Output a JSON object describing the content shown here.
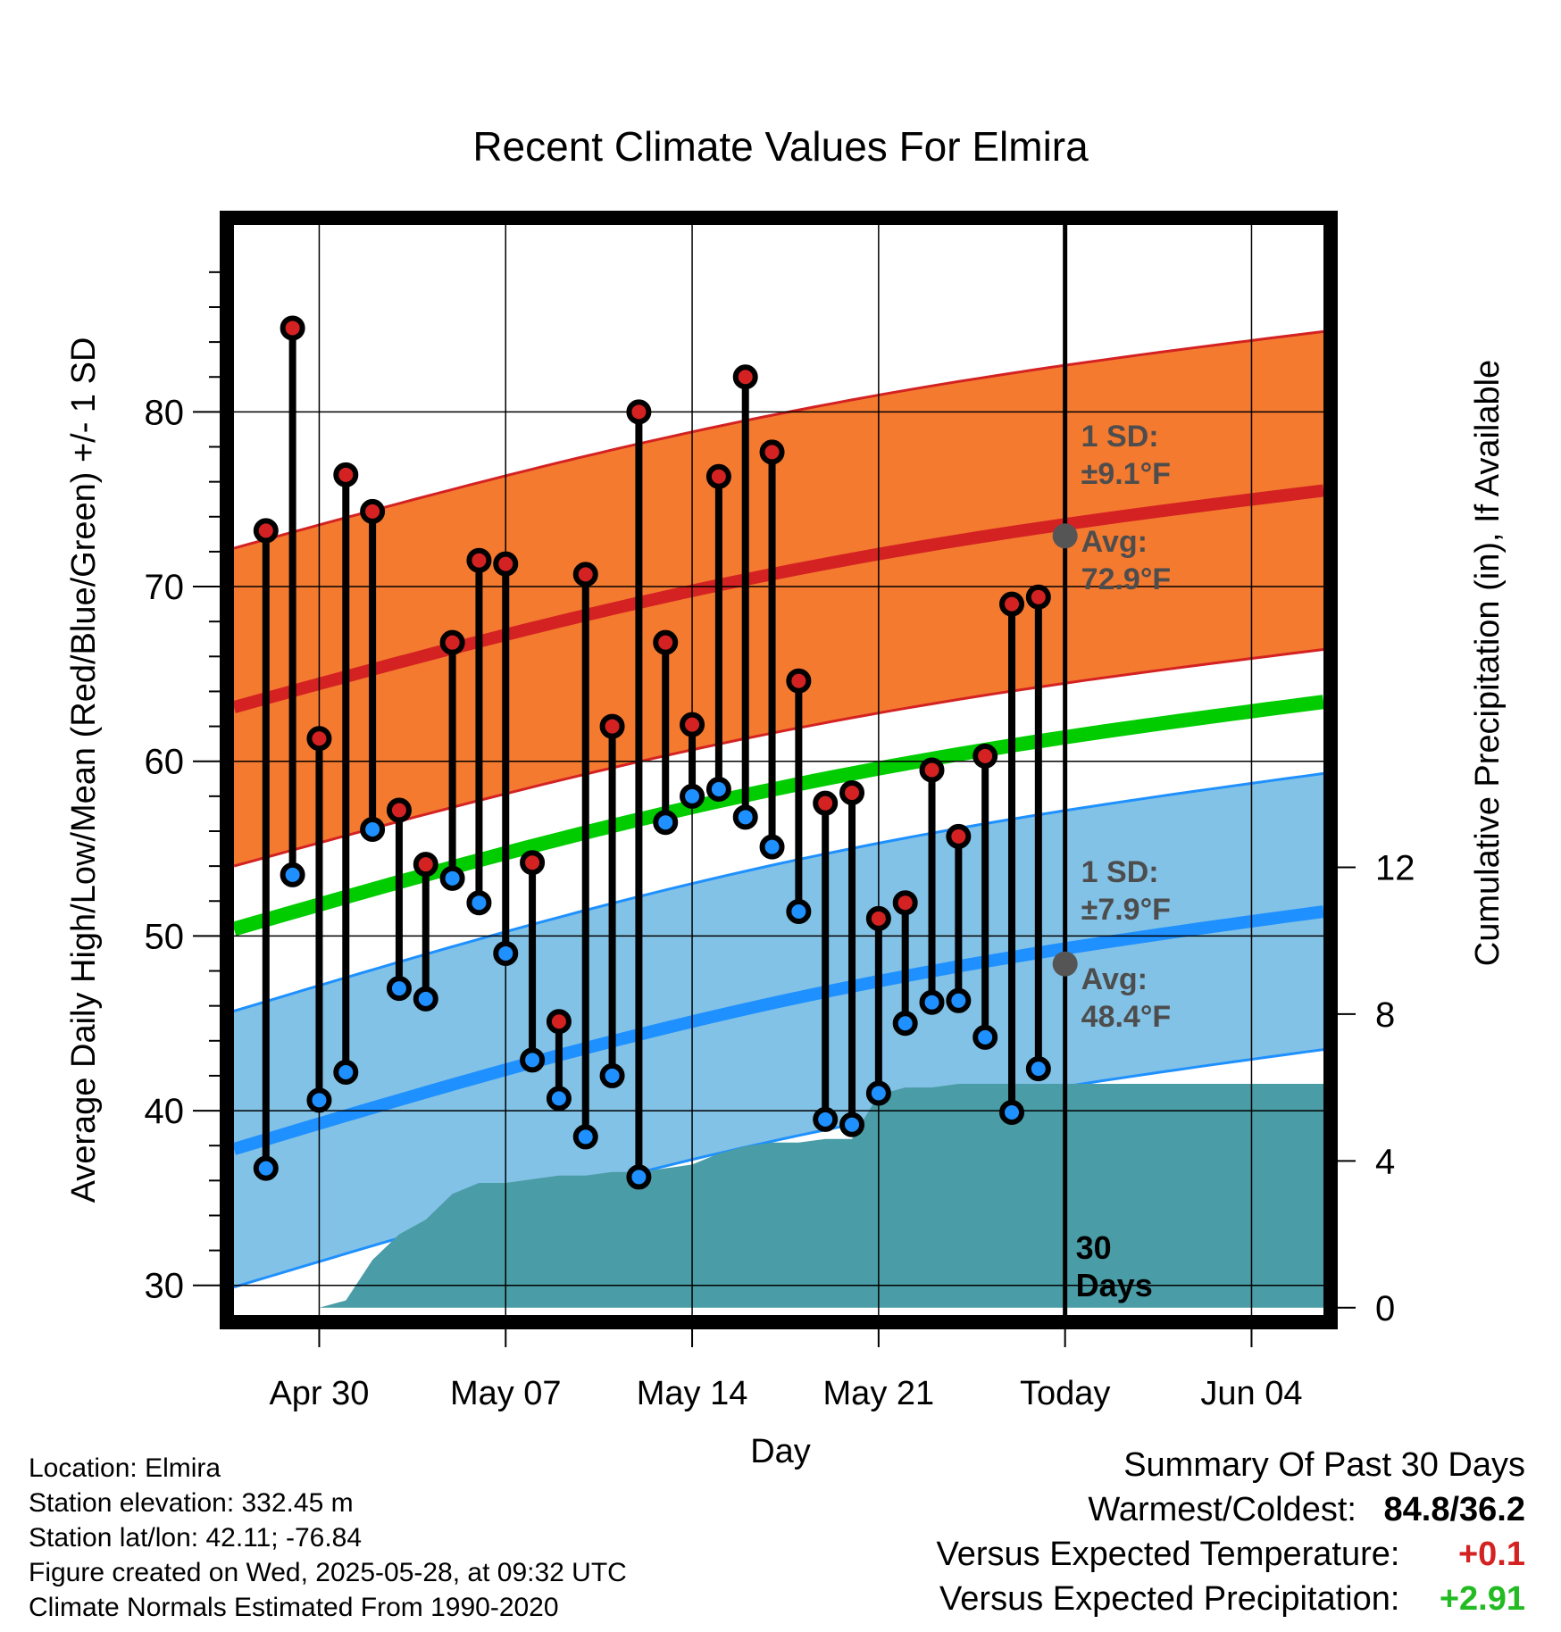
{
  "chart_data": {
    "type": "scatter",
    "title": "Recent Climate Values For Elmira",
    "xlabel": "Day",
    "ylabel": "Average Daily High/Low/Mean (Red/Blue/Green) +/- 1 SD",
    "y2label": "Cumulative Precipitation (in), If Available",
    "x_ticks": [
      "Apr 30",
      "May 07",
      "May 14",
      "May 21",
      "Today",
      "Jun 04"
    ],
    "x_tick_days": [
      0,
      7,
      14,
      21,
      28,
      35
    ],
    "xlim": [
      -3.2,
      37.7
    ],
    "ylim": [
      28.3,
      90.7
    ],
    "y_ticks": [
      30,
      40,
      50,
      60,
      70,
      80
    ],
    "y2lim": [
      -0.2,
      29.5
    ],
    "y2_ticks": [
      0,
      4,
      8,
      12
    ],
    "today_day": 28,
    "today_label": [
      "30",
      "Days"
    ],
    "daily_high": [
      73.2,
      84.8,
      61.3,
      76.4,
      74.3,
      57.2,
      54.1,
      66.8,
      71.5,
      71.3,
      54.2,
      45.1,
      70.7,
      62.0,
      80.0,
      66.8,
      62.1,
      76.3,
      82.0,
      77.7,
      64.6,
      57.6,
      58.2,
      51.0,
      51.9,
      59.5,
      55.7,
      60.3,
      69.0,
      69.4
    ],
    "daily_low": [
      36.7,
      53.5,
      40.6,
      42.2,
      56.1,
      47.0,
      46.4,
      53.3,
      51.9,
      49.0,
      42.9,
      40.7,
      38.5,
      42.0,
      36.2,
      56.5,
      58.0,
      58.4,
      56.8,
      55.1,
      51.4,
      39.5,
      39.2,
      41.0,
      45.0,
      46.2,
      46.3,
      44.2,
      39.9,
      42.4
    ],
    "normal_high": {
      "start": 63.1,
      "end": 75.5,
      "sd": 9.1
    },
    "normal_low": {
      "start": 37.8,
      "end": 51.4,
      "sd": 7.9
    },
    "normal_mean": {
      "start": 50.4,
      "end": 63.4
    },
    "today_avg_high": 72.9,
    "today_avg_low": 48.4,
    "annotations": {
      "high_sd": [
        "1 SD:",
        "±9.1°F"
      ],
      "high_avg": [
        "Avg:",
        "72.9°F"
      ],
      "low_sd": [
        "1 SD:",
        "±7.9°F"
      ],
      "low_avg": [
        "Avg:",
        "48.4°F"
      ]
    },
    "precip_cumulative": {
      "days": [
        -3.2,
        0.0,
        1.0,
        2.0,
        3.0,
        4.0,
        5.0,
        6.0,
        7.0,
        8.0,
        9.0,
        10.0,
        11.0,
        12.0,
        13.0,
        14.0,
        15.0,
        16.0,
        17.0,
        18.0,
        19.0,
        20.0,
        21.0,
        22.0,
        23.0,
        24.0,
        25.0,
        26.0,
        27.0,
        28.0,
        37.7
      ],
      "values": [
        0.0,
        0.0,
        0.2,
        1.3,
        2.0,
        2.4,
        3.1,
        3.4,
        3.4,
        3.5,
        3.6,
        3.6,
        3.7,
        3.7,
        3.8,
        3.9,
        4.2,
        4.4,
        4.5,
        4.5,
        4.6,
        4.6,
        5.8,
        6.0,
        6.0,
        6.1,
        6.1,
        6.1,
        6.1,
        6.1,
        6.1
      ]
    },
    "colors": {
      "high_band": "#f47a30",
      "high_line": "#d42222",
      "low_band": "#82c2e6",
      "low_line": "#1e90ff",
      "mean_line": "#00cc00",
      "precip": "#4a9ca6",
      "high_dot": "#d42222",
      "low_dot": "#1e90ff",
      "annotation": "#4d4d4d"
    },
    "grid": true
  },
  "info": {
    "location": "Location: Elmira",
    "elevation": "Station elevation: 332.45 m",
    "latlon": "Station lat/lon: 42.11; -76.84",
    "created": "Figure created on Wed, 2025-05-28, at 09:32 UTC",
    "normals": "Climate Normals Estimated From 1990-2020"
  },
  "summary": {
    "title": "Summary Of Past 30 Days",
    "warm_cold_label": "Warmest/Coldest:",
    "warm_cold_value": "84.8/36.2",
    "temp_label": "Versus Expected Temperature:",
    "temp_value": "+0.1",
    "temp_color": "#d42222",
    "precip_label": "Versus Expected Precipitation:",
    "precip_value": "+2.91",
    "precip_color": "#22bb22"
  }
}
